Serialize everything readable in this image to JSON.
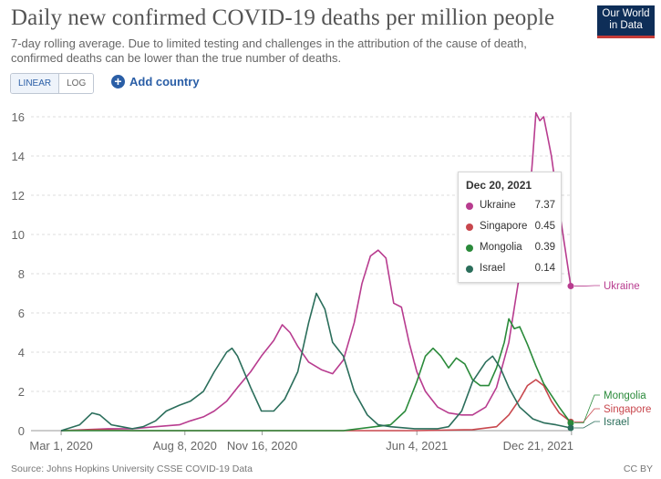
{
  "header": {
    "title": "Daily new confirmed COVID-19 deaths per million people",
    "subtitle": "7-day rolling average. Due to limited testing and challenges in the attribution of the cause of death, confirmed deaths can be lower than the true number of deaths.",
    "logo_line1": "Our World",
    "logo_line2": "in Data"
  },
  "controls": {
    "scale_options": [
      "LINEAR",
      "LOG"
    ],
    "selected_scale": "LINEAR",
    "add_country_label": "Add country"
  },
  "footer": {
    "source": "Source: Johns Hopkins University CSSE COVID-19 Data",
    "license": "CC BY"
  },
  "tooltip": {
    "date": "Dec 20, 2021",
    "rows": [
      {
        "name": "Ukraine",
        "value": "7.37",
        "color": "#b83c8f"
      },
      {
        "name": "Singapore",
        "value": "0.45",
        "color": "#c8474d"
      },
      {
        "name": "Mongolia",
        "value": "0.39",
        "color": "#2a8a3a"
      },
      {
        "name": "Israel",
        "value": "0.14",
        "color": "#2b6e5b"
      }
    ]
  },
  "chart_data": {
    "type": "line",
    "title": "Daily new confirmed COVID-19 deaths per million people",
    "x_tick_labels": [
      "Mar 1, 2020",
      "Aug 8, 2020",
      "Nov 16, 2020",
      "Jun 4, 2021",
      "Dec 21, 2021"
    ],
    "x_tick_dates": [
      "2020-03-01",
      "2020-08-08",
      "2020-11-16",
      "2021-06-04",
      "2021-12-21"
    ],
    "xlim": [
      "2020-01-22",
      "2021-12-20"
    ],
    "ylim": [
      0,
      16
    ],
    "y_ticks": [
      0,
      2,
      4,
      6,
      8,
      10,
      12,
      14,
      16
    ],
    "grid": "horizontal",
    "series": [
      {
        "name": "Ukraine",
        "color": "#b83c8f",
        "end_label": "Ukraine",
        "points": [
          [
            "2020-03-01",
            0
          ],
          [
            "2020-04-01",
            0.05
          ],
          [
            "2020-05-01",
            0.1
          ],
          [
            "2020-06-01",
            0.1
          ],
          [
            "2020-07-01",
            0.2
          ],
          [
            "2020-08-01",
            0.3
          ],
          [
            "2020-08-15",
            0.5
          ],
          [
            "2020-09-01",
            0.7
          ],
          [
            "2020-09-15",
            1.0
          ],
          [
            "2020-10-01",
            1.5
          ],
          [
            "2020-10-15",
            2.2
          ],
          [
            "2020-11-01",
            3.0
          ],
          [
            "2020-11-15",
            3.8
          ],
          [
            "2020-12-01",
            4.6
          ],
          [
            "2020-12-12",
            5.4
          ],
          [
            "2020-12-22",
            5.0
          ],
          [
            "2021-01-01",
            4.3
          ],
          [
            "2021-01-15",
            3.5
          ],
          [
            "2021-02-01",
            3.1
          ],
          [
            "2021-02-15",
            2.9
          ],
          [
            "2021-03-01",
            3.6
          ],
          [
            "2021-03-15",
            5.5
          ],
          [
            "2021-03-25",
            7.5
          ],
          [
            "2021-04-05",
            8.9
          ],
          [
            "2021-04-15",
            9.2
          ],
          [
            "2021-04-25",
            8.8
          ],
          [
            "2021-05-05",
            6.5
          ],
          [
            "2021-05-15",
            6.3
          ],
          [
            "2021-05-25",
            4.5
          ],
          [
            "2021-06-04",
            3.0
          ],
          [
            "2021-06-15",
            2.0
          ],
          [
            "2021-07-01",
            1.2
          ],
          [
            "2021-07-15",
            0.9
          ],
          [
            "2021-08-01",
            0.8
          ],
          [
            "2021-08-15",
            0.8
          ],
          [
            "2021-09-01",
            1.2
          ],
          [
            "2021-09-15",
            2.2
          ],
          [
            "2021-10-01",
            4.5
          ],
          [
            "2021-10-15",
            8.0
          ],
          [
            "2021-10-25",
            10.5
          ],
          [
            "2021-11-01",
            14.0
          ],
          [
            "2021-11-05",
            16.2
          ],
          [
            "2021-11-10",
            15.8
          ],
          [
            "2021-11-15",
            16.0
          ],
          [
            "2021-11-20",
            15.0
          ],
          [
            "2021-11-25",
            14.0
          ],
          [
            "2021-12-01",
            12.3
          ],
          [
            "2021-12-10",
            10.0
          ],
          [
            "2021-12-20",
            7.37
          ]
        ]
      },
      {
        "name": "Singapore",
        "color": "#c8474d",
        "end_label": "Singapore",
        "points": [
          [
            "2020-03-01",
            0
          ],
          [
            "2020-04-15",
            0.05
          ],
          [
            "2020-06-01",
            0
          ],
          [
            "2021-06-01",
            0
          ],
          [
            "2021-08-15",
            0.05
          ],
          [
            "2021-09-15",
            0.2
          ],
          [
            "2021-10-01",
            0.8
          ],
          [
            "2021-10-15",
            1.6
          ],
          [
            "2021-10-25",
            2.3
          ],
          [
            "2021-11-05",
            2.6
          ],
          [
            "2021-11-15",
            2.3
          ],
          [
            "2021-11-25",
            1.5
          ],
          [
            "2021-12-05",
            0.9
          ],
          [
            "2021-12-20",
            0.45
          ]
        ]
      },
      {
        "name": "Mongolia",
        "color": "#2a8a3a",
        "end_label": "Mongolia",
        "points": [
          [
            "2020-03-01",
            0
          ],
          [
            "2020-06-01",
            0
          ],
          [
            "2020-12-01",
            0
          ],
          [
            "2021-03-01",
            0
          ],
          [
            "2021-05-01",
            0.3
          ],
          [
            "2021-05-20",
            1.0
          ],
          [
            "2021-06-04",
            2.5
          ],
          [
            "2021-06-15",
            3.8
          ],
          [
            "2021-06-25",
            4.2
          ],
          [
            "2021-07-05",
            3.8
          ],
          [
            "2021-07-15",
            3.2
          ],
          [
            "2021-07-25",
            3.7
          ],
          [
            "2021-08-05",
            3.4
          ],
          [
            "2021-08-15",
            2.6
          ],
          [
            "2021-08-25",
            2.3
          ],
          [
            "2021-09-05",
            2.3
          ],
          [
            "2021-09-15",
            3.2
          ],
          [
            "2021-09-25",
            4.5
          ],
          [
            "2021-10-01",
            5.7
          ],
          [
            "2021-10-08",
            5.2
          ],
          [
            "2021-10-15",
            5.3
          ],
          [
            "2021-10-25",
            4.4
          ],
          [
            "2021-11-05",
            3.3
          ],
          [
            "2021-11-15",
            2.4
          ],
          [
            "2021-11-25",
            1.8
          ],
          [
            "2021-12-05",
            1.2
          ],
          [
            "2021-12-20",
            0.39
          ]
        ]
      },
      {
        "name": "Israel",
        "color": "#2b6e5b",
        "end_label": "Israel",
        "points": [
          [
            "2020-03-01",
            0
          ],
          [
            "2020-03-25",
            0.3
          ],
          [
            "2020-04-10",
            0.9
          ],
          [
            "2020-04-20",
            0.8
          ],
          [
            "2020-05-05",
            0.3
          ],
          [
            "2020-06-01",
            0.1
          ],
          [
            "2020-06-15",
            0.2
          ],
          [
            "2020-07-01",
            0.5
          ],
          [
            "2020-07-15",
            1.0
          ],
          [
            "2020-08-01",
            1.3
          ],
          [
            "2020-08-15",
            1.5
          ],
          [
            "2020-09-01",
            2.0
          ],
          [
            "2020-09-15",
            3.0
          ],
          [
            "2020-10-01",
            4.0
          ],
          [
            "2020-10-08",
            4.2
          ],
          [
            "2020-10-15",
            3.8
          ],
          [
            "2020-11-01",
            2.2
          ],
          [
            "2020-11-15",
            1.0
          ],
          [
            "2020-12-01",
            1.0
          ],
          [
            "2020-12-15",
            1.6
          ],
          [
            "2021-01-01",
            3.0
          ],
          [
            "2021-01-15",
            5.5
          ],
          [
            "2021-01-25",
            7.0
          ],
          [
            "2021-02-05",
            6.2
          ],
          [
            "2021-02-15",
            4.5
          ],
          [
            "2021-03-01",
            3.8
          ],
          [
            "2021-03-15",
            2.0
          ],
          [
            "2021-04-01",
            0.8
          ],
          [
            "2021-04-15",
            0.3
          ],
          [
            "2021-05-01",
            0.2
          ],
          [
            "2021-06-01",
            0.1
          ],
          [
            "2021-07-01",
            0.1
          ],
          [
            "2021-07-15",
            0.2
          ],
          [
            "2021-08-01",
            1.0
          ],
          [
            "2021-08-15",
            2.5
          ],
          [
            "2021-09-01",
            3.5
          ],
          [
            "2021-09-10",
            3.8
          ],
          [
            "2021-09-20",
            3.2
          ],
          [
            "2021-10-01",
            2.2
          ],
          [
            "2021-10-15",
            1.2
          ],
          [
            "2021-11-01",
            0.6
          ],
          [
            "2021-11-15",
            0.4
          ],
          [
            "2021-12-01",
            0.3
          ],
          [
            "2021-12-20",
            0.14
          ]
        ]
      }
    ]
  }
}
